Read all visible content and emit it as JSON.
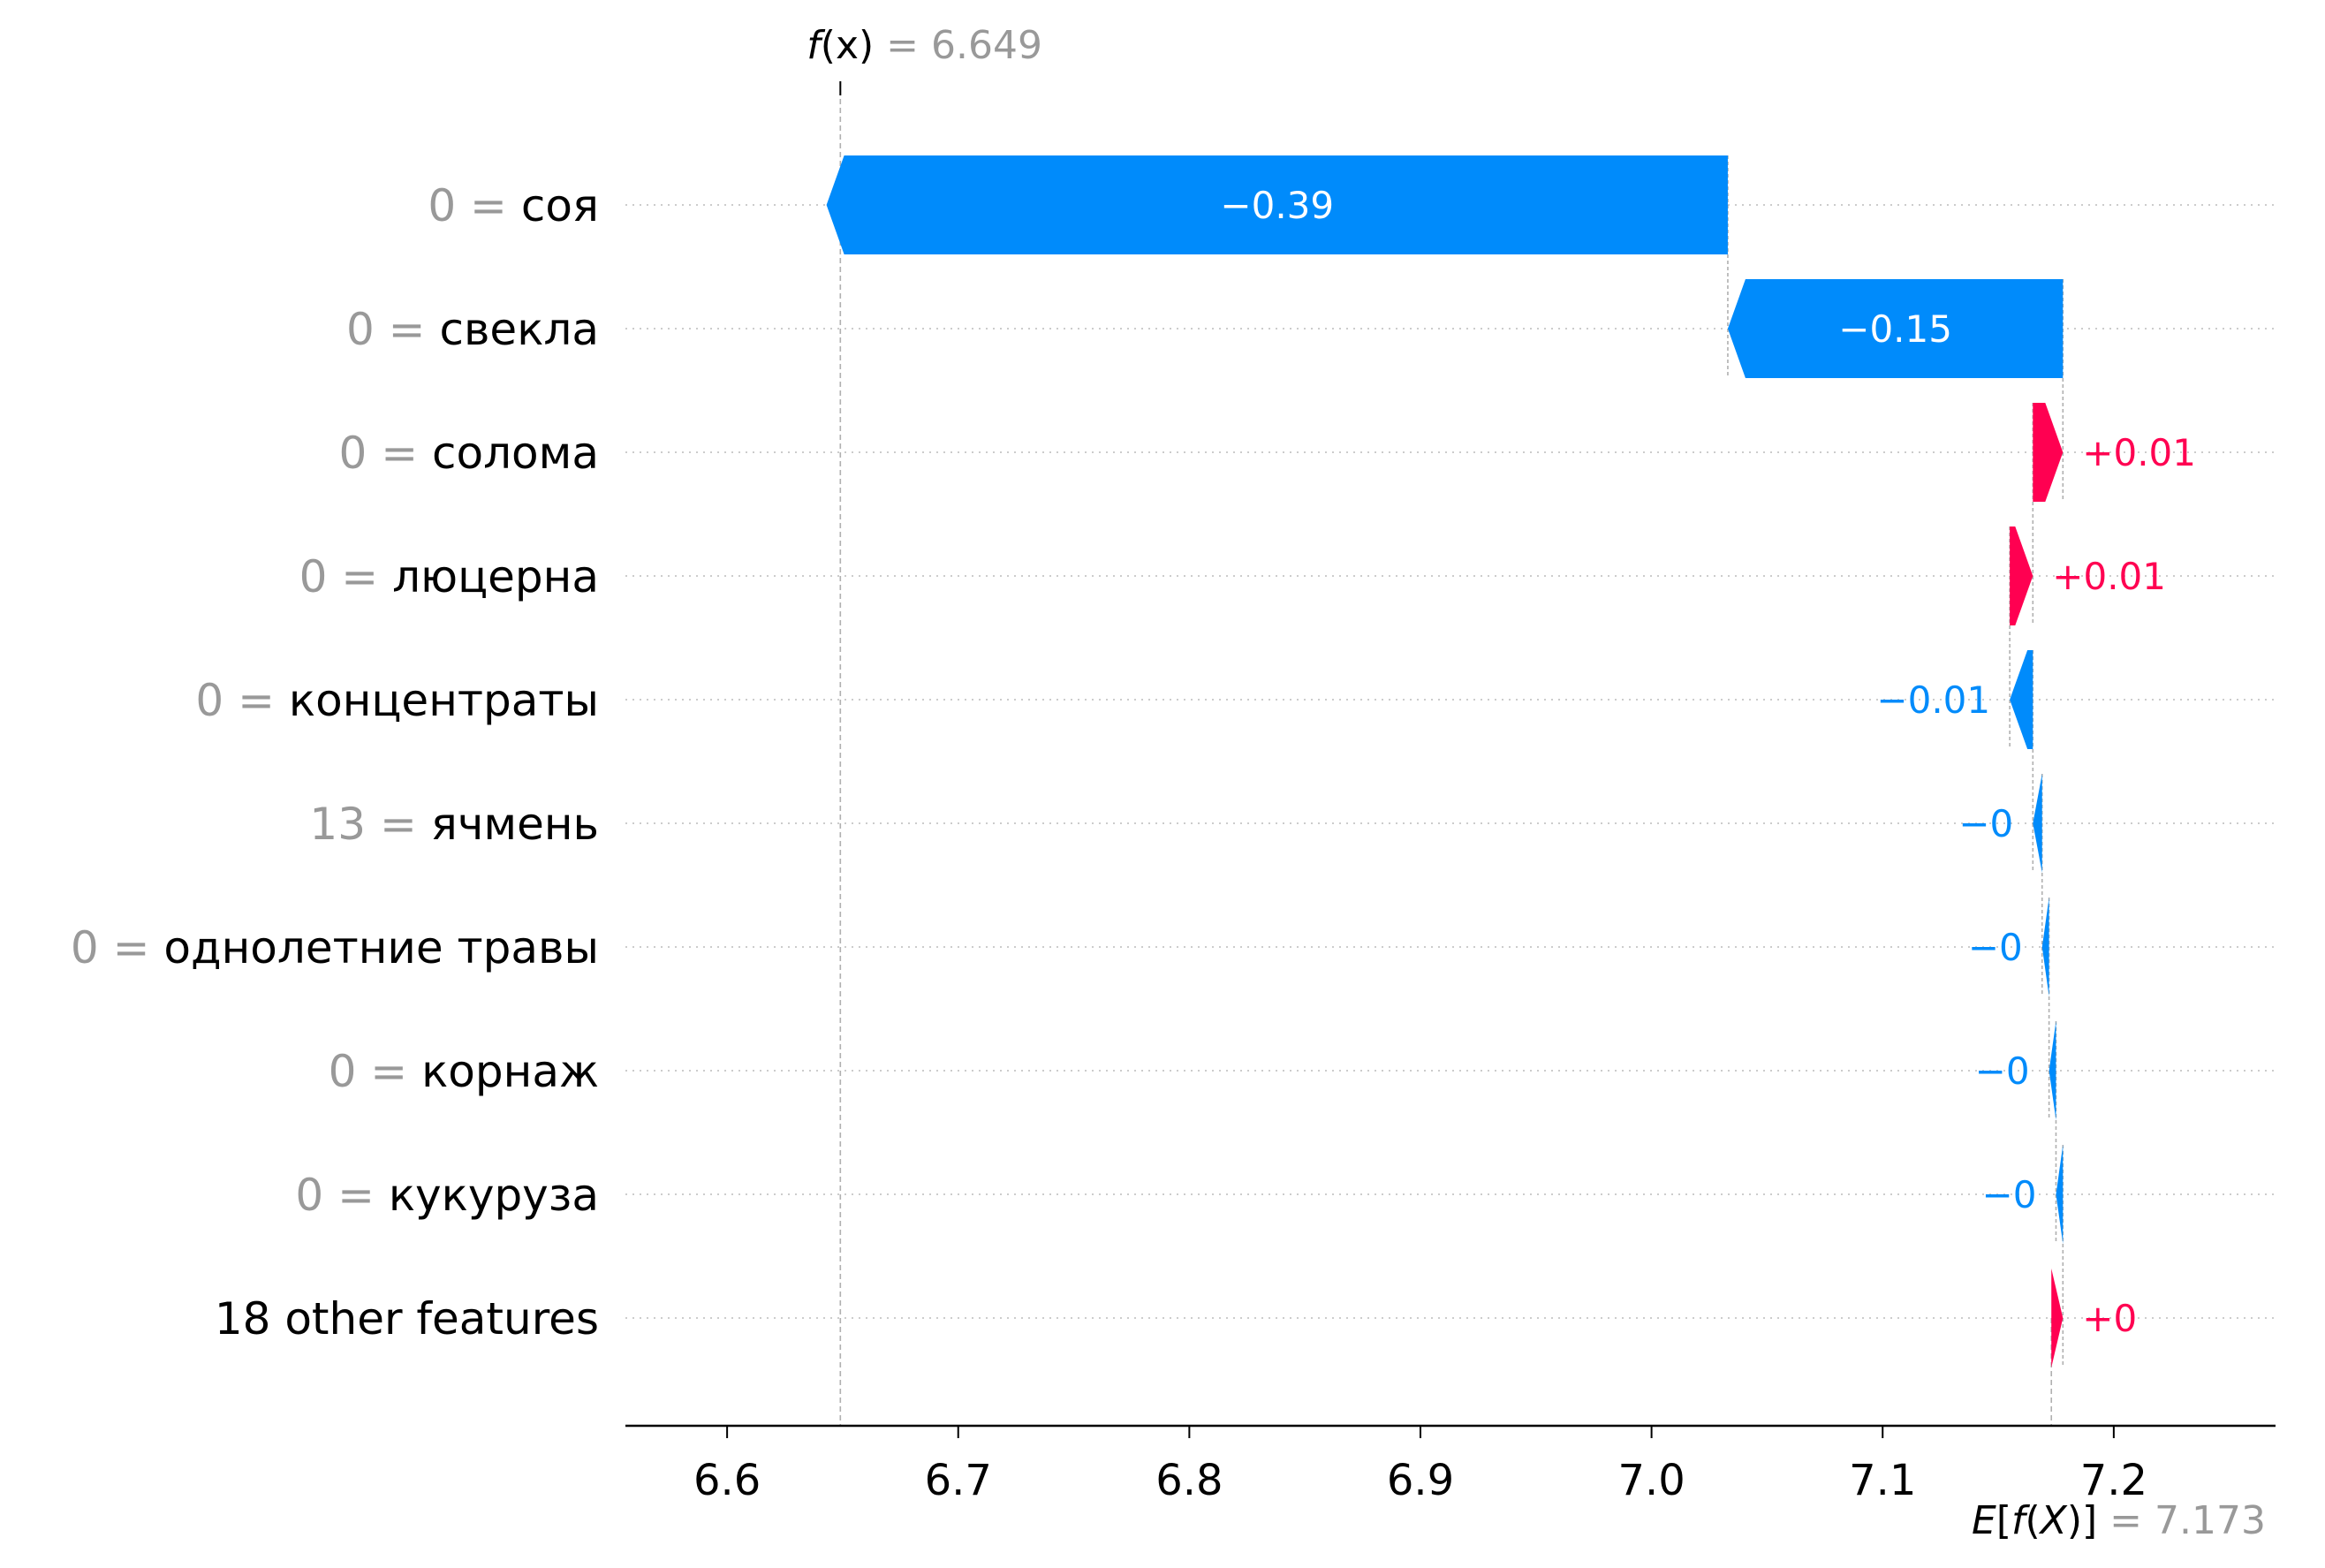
{
  "chart_data": {
    "type": "waterfall",
    "base_value": 7.173,
    "output_value": 6.649,
    "output_label": {
      "func": "f",
      "arg": "(x)",
      "eq": " = ",
      "value": "6.649"
    },
    "base_label": {
      "prefix": "E[",
      "func": "f",
      "arg": "(X)",
      "suffix": "]",
      "eq": " = ",
      "value": "7.173"
    },
    "features": [
      {
        "value": "0",
        "name": "соя",
        "shap": -0.39,
        "label": "−0.39"
      },
      {
        "value": "0",
        "name": "свекла",
        "shap": -0.145,
        "label": "−0.15"
      },
      {
        "value": "0",
        "name": "солома",
        "shap": 0.013,
        "label": "+0.01"
      },
      {
        "value": "0",
        "name": "люцерна",
        "shap": 0.01,
        "label": "+0.01"
      },
      {
        "value": "0",
        "name": "концентраты",
        "shap": -0.01,
        "label": "−0.01"
      },
      {
        "value": "13",
        "name": "ячмень",
        "shap": -0.004,
        "label": "−0"
      },
      {
        "value": "0",
        "name": "однолетние травы",
        "shap": -0.003,
        "label": "−0"
      },
      {
        "value": "0",
        "name": "корнаж",
        "shap": -0.003,
        "label": "−0"
      },
      {
        "value": "0",
        "name": "кукуруза",
        "shap": -0.003,
        "label": "−0"
      },
      {
        "value": "",
        "name": "18 other features",
        "shap": 0.005,
        "label": "+0"
      }
    ],
    "x_ticks": [
      6.6,
      6.7,
      6.8,
      6.9,
      7.0,
      7.1,
      7.2
    ],
    "x_tick_labels": [
      "6.6",
      "6.7",
      "6.8",
      "6.9",
      "7.0",
      "7.1",
      "7.2"
    ],
    "xlim": [
      6.556,
      7.27
    ],
    "xlabel": "",
    "ylabel": "",
    "title": "",
    "colors": {
      "negative": "#008bfb",
      "positive": "#ff0051",
      "feature_value": "#999999",
      "text": "#000000",
      "grid": "#cccccc"
    }
  }
}
